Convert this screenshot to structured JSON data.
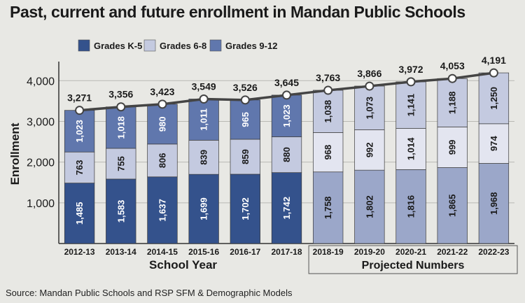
{
  "title": "Past, current and future enrollment in Mandan Public Schools",
  "source": "Source: Mandan Public Schools and RSP SFM & Demographic Models",
  "chart_data": {
    "type": "bar",
    "stacked": true,
    "title": "Past, current and future enrollment in Mandan Public Schools",
    "xlabel": "School Year",
    "ylabel": "Enrollment",
    "ylim": [
      0,
      4400
    ],
    "yticks": [
      1000,
      2000,
      3000,
      4000
    ],
    "ytick_labels": [
      "1,000",
      "2,000",
      "3,000",
      "4,000"
    ],
    "grid": true,
    "legend": "top-left",
    "categories": [
      "2012-13",
      "2013-14",
      "2014-15",
      "2015-16",
      "2016-17",
      "2017-18",
      "2018-19",
      "2019-20",
      "2020-21",
      "2021-22",
      "2022-23"
    ],
    "projected_label": "Projected Numbers",
    "projected_start_index": 6,
    "series": [
      {
        "name": "Grades K-5",
        "values": [
          1485,
          1583,
          1637,
          1699,
          1702,
          1742,
          1758,
          1802,
          1816,
          1865,
          1968
        ],
        "labels": [
          "1,485",
          "1,583",
          "1,637",
          "1,699",
          "1,702",
          "1,742",
          "1,758",
          "1,802",
          "1,816",
          "1,865",
          "1,968"
        ]
      },
      {
        "name": "Grades 6-8",
        "values": [
          763,
          755,
          806,
          839,
          859,
          880,
          968,
          992,
          1014,
          999,
          974
        ],
        "labels": [
          "763",
          "755",
          "806",
          "839",
          "859",
          "880",
          "968",
          "992",
          "1,014",
          "999",
          "974"
        ]
      },
      {
        "name": "Grades 9-12",
        "values": [
          1023,
          1018,
          980,
          1011,
          965,
          1023,
          1038,
          1073,
          1141,
          1188,
          1250
        ],
        "labels": [
          "1,023",
          "1,018",
          "980",
          "1,011",
          "965",
          "1,023",
          "1,038",
          "1,073",
          "1,141",
          "1,188",
          "1,250"
        ]
      }
    ],
    "totals": [
      3271,
      3356,
      3423,
      3549,
      3526,
      3645,
      3763,
      3866,
      3972,
      4053,
      4191
    ],
    "total_labels": [
      "3,271",
      "3,356",
      "3,423",
      "3,549",
      "3,526",
      "3,645",
      "3,763",
      "3,866",
      "3,972",
      "4,053",
      "4,191"
    ],
    "colors": {
      "k5": "#34528c",
      "g68": "#c4cae0",
      "g912": "#6077ad",
      "k5_projected": "#9ba7c9",
      "g68_projected": "#e3e5f0",
      "g912_projected": "#c4cae0",
      "total_line": "#444444",
      "total_marker": "#ffffff"
    }
  }
}
